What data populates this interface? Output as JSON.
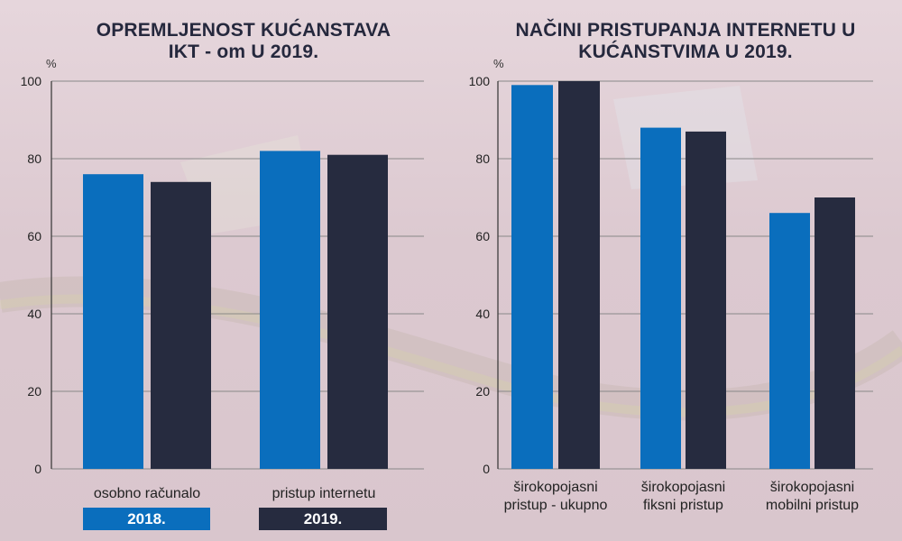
{
  "colors": {
    "series_2018": "#0a6ebd",
    "series_2019": "#262b3f",
    "title": "#25283d",
    "gridline": "#888888"
  },
  "legend": {
    "item_2018": "2018.",
    "item_2019": "2019."
  },
  "chart_data": [
    {
      "type": "bar",
      "title_line1": "OPREMLJENOST KUĆANSTAVA",
      "title_line2": "IKT - om U 2019.",
      "ylabel": "%",
      "ylim": [
        0,
        100
      ],
      "yticks": [
        0,
        20,
        40,
        60,
        80,
        100
      ],
      "grid": true,
      "legend_position": "bottom",
      "categories": [
        [
          "osobno računalo"
        ],
        [
          "pristup internetu"
        ]
      ],
      "series": [
        {
          "name": "2018.",
          "values": [
            76,
            82
          ]
        },
        {
          "name": "2019.",
          "values": [
            74,
            81
          ]
        }
      ]
    },
    {
      "type": "bar",
      "title_line1": "NAČINI PRISTUPANJA INTERNETU U",
      "title_line2": "KUĆANSTVIMA U 2019.",
      "ylabel": "%",
      "ylim": [
        0,
        100
      ],
      "yticks": [
        0,
        20,
        40,
        60,
        80,
        100
      ],
      "grid": true,
      "categories": [
        [
          "širokopojasni",
          "pristup - ukupno"
        ],
        [
          "širokopojasni",
          "fiksni pristup"
        ],
        [
          "širokopojasni",
          "mobilni pristup"
        ]
      ],
      "series": [
        {
          "name": "2018.",
          "values": [
            99,
            88,
            66
          ]
        },
        {
          "name": "2019.",
          "values": [
            100,
            87,
            70
          ]
        }
      ]
    }
  ]
}
